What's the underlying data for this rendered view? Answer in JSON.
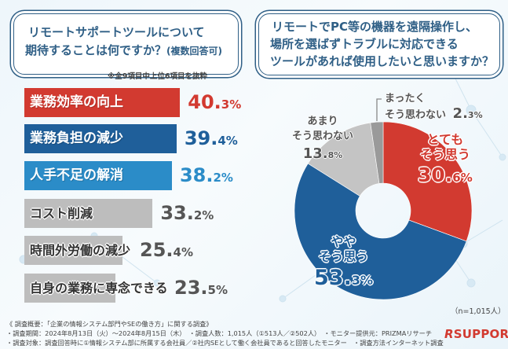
{
  "left_question": {
    "line1": "リモートサポートツールについて",
    "line2": "期待することは何ですか？",
    "line2_suffix": "(複数回答可)"
  },
  "left_note": "※全9項目中上位6項目を抜粋",
  "right_question": {
    "line1": "リモートでPC等の機器を遠隔操作し、",
    "line2": "場所を選ばずトラブルに対応できる",
    "line3": "ツールがあれば使用したいと思いますか？"
  },
  "colors": {
    "red": "#d23a30",
    "navy": "#1f5f9a",
    "sky": "#2b8cc8",
    "gray": "#bdbdbd",
    "dark_gray": "#9a9a9a",
    "title": "#2f5f86"
  },
  "chart_data": [
    {
      "type": "bar",
      "orientation": "horizontal",
      "title": "リモートサポートツールについて期待することは何ですか？(複数回答可)",
      "categories": [
        "業務効率の向上",
        "業務負担の減少",
        "人手不足の解消",
        "コスト削減",
        "時間外労働の減少",
        "自身の業務に専念できる"
      ],
      "values": [
        40.3,
        39.4,
        38.2,
        33.2,
        25.4,
        23.5
      ],
      "value_int": [
        "40.",
        "39.",
        "38.",
        "33.",
        "25.",
        "23."
      ],
      "value_frac": [
        "3%",
        "4%",
        "2%",
        "2%",
        "4%",
        "5%"
      ],
      "bar_colors": [
        "#d23a30",
        "#1f5f9a",
        "#2b8cc8",
        "#bdbdbd",
        "#bdbdbd",
        "#bdbdbd"
      ],
      "value_colors": [
        "#d23a30",
        "#1f5f9a",
        "#2b8cc8",
        "#555555",
        "#555555",
        "#555555"
      ],
      "unit": "%"
    },
    {
      "type": "pie",
      "donut": true,
      "title": "リモートでPC等の機器を遠隔操作し、場所を選ばずトラブルに対応できるツールがあれば使用したいと思いますか？",
      "slices": [
        {
          "label_line1": "とても",
          "label_line2": "そう思う",
          "value": 30.6,
          "value_int": "30.",
          "value_frac": "6%",
          "color": "#d23a30"
        },
        {
          "label_line1": "やや",
          "label_line2": "そう思う",
          "value": 53.3,
          "value_int": "53.",
          "value_frac": "3%",
          "color": "#1f5f9a"
        },
        {
          "label_line1": "あまり",
          "label_line2": "そう思わない",
          "value": 13.8,
          "value_int": "13.",
          "value_frac": "8%",
          "color": "#c4c4c4"
        },
        {
          "label_line1": "まったく",
          "label_line2": "そう思わない",
          "value": 2.3,
          "value_int": "2.",
          "value_frac": "3%",
          "color": "#9a9a9a"
        }
      ],
      "sample_note": "（n=1,015人）"
    }
  ],
  "footer": {
    "line1": "《 調査概要：「企業の情報システム部門やSEの働き方」に関する調査》",
    "line2": "・調査期間：2024年8月13日（火）～2024年8月15日（木）　・調査人数：1,015人（①513人／②502人）　・モニター提供元：PRIZMAリサーチ",
    "line3": "・調査対象：調査回答時に①情報システム部に所属する会社員／②社内SEとして働く会社員であると回答したモニター　・調査方法インターネット調査"
  },
  "logo": {
    "mark": "R",
    "text": "SUPPORT"
  }
}
